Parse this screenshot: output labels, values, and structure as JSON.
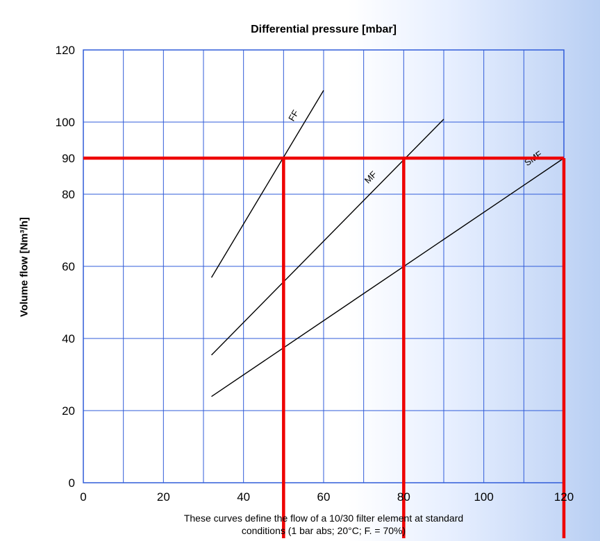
{
  "chart_data": {
    "type": "line",
    "title": "Differential pressure [mbar]",
    "ylabel": "Volume flow [Nm³/h]",
    "xlabel": "",
    "xlim": [
      0,
      120
    ],
    "ylim": [
      0,
      120
    ],
    "grid": true,
    "x_ticks": [
      "0",
      "20",
      "40",
      "60",
      "80",
      "100",
      "120"
    ],
    "x_tick_values": [
      0,
      20,
      40,
      60,
      80,
      100,
      120
    ],
    "y_ticks": [
      "0",
      "20",
      "40",
      "60",
      "80",
      "90",
      "100",
      "120"
    ],
    "y_tick_values": [
      0,
      20,
      40,
      60,
      80,
      90,
      100,
      120
    ],
    "grid_x": [
      10,
      20,
      30,
      40,
      50,
      60,
      70,
      80,
      90,
      100,
      110
    ],
    "grid_y": [
      20,
      40,
      60,
      80,
      100
    ],
    "series": [
      {
        "name": "FF",
        "x": [
          32,
          60
        ],
        "y": [
          56.9,
          108.8
        ]
      },
      {
        "name": "MF",
        "x": [
          32,
          90
        ],
        "y": [
          35.4,
          100.8
        ]
      },
      {
        "name": "SMF",
        "x": [
          32,
          120
        ],
        "y": [
          23.9,
          90
        ]
      }
    ],
    "reference_lines": [
      {
        "orientation": "horizontal",
        "value": 90,
        "color": "#ee0000"
      },
      {
        "orientation": "vertical",
        "value": 50,
        "color": "#ee0000"
      },
      {
        "orientation": "vertical",
        "value": 80,
        "color": "#ee0000"
      },
      {
        "orientation": "vertical",
        "value": 120,
        "color": "#ee0000"
      }
    ],
    "caption_lines": [
      "These curves define the flow of a 10/30 filter element at standard",
      "conditions (1 bar abs; 20°C; F. = 70%)"
    ],
    "colors": {
      "grid": "#2f5bd8",
      "reference": "#ee0000",
      "curve": "#000000"
    }
  }
}
